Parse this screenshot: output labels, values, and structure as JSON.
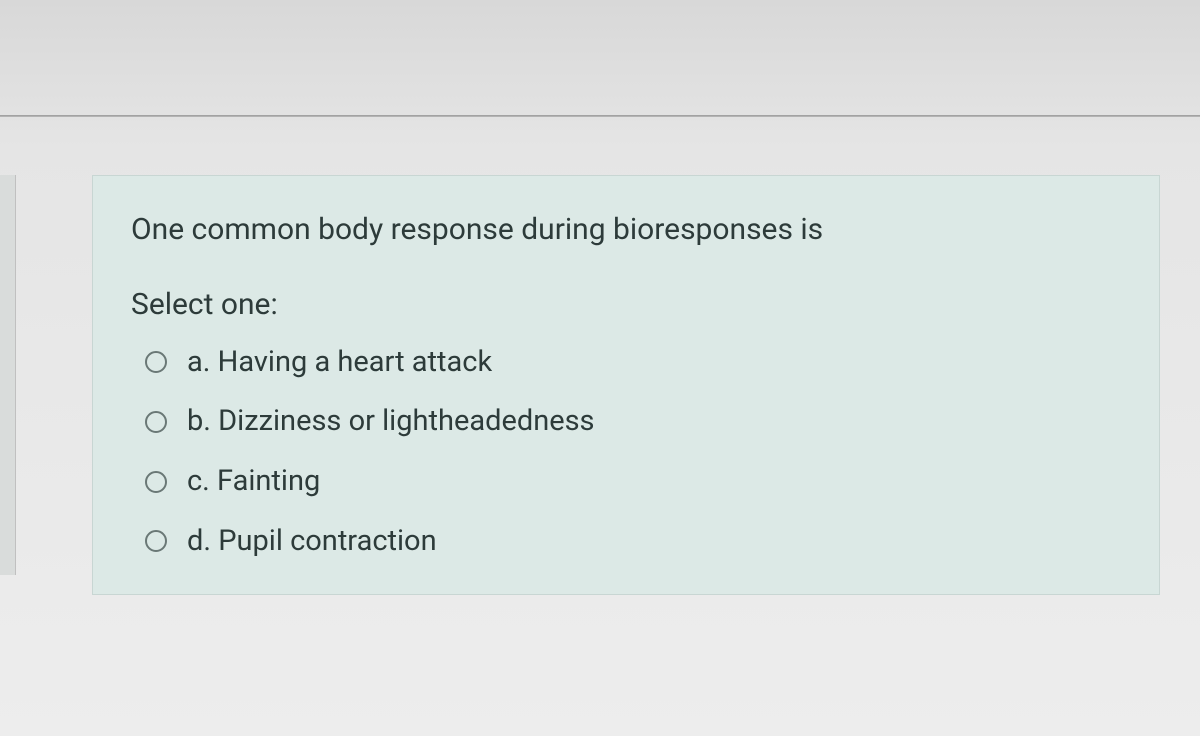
{
  "question": {
    "prompt": "One common body response during bioresponses is",
    "select_label": "Select one:",
    "options": [
      {
        "letter": "a.",
        "text": "Having a heart attack"
      },
      {
        "letter": "b.",
        "text": "Dizziness or lightheadedness"
      },
      {
        "letter": "c.",
        "text": "Fainting"
      },
      {
        "letter": "d.",
        "text": "Pupil contraction"
      }
    ]
  },
  "styling": {
    "card_background": "#dce9e6",
    "card_border": "#c8d6d3",
    "page_background": "#e8e8e8",
    "text_color": "#2d3b3a",
    "radio_border": "#6a7876",
    "question_fontsize": 30,
    "option_fontsize": 29
  }
}
